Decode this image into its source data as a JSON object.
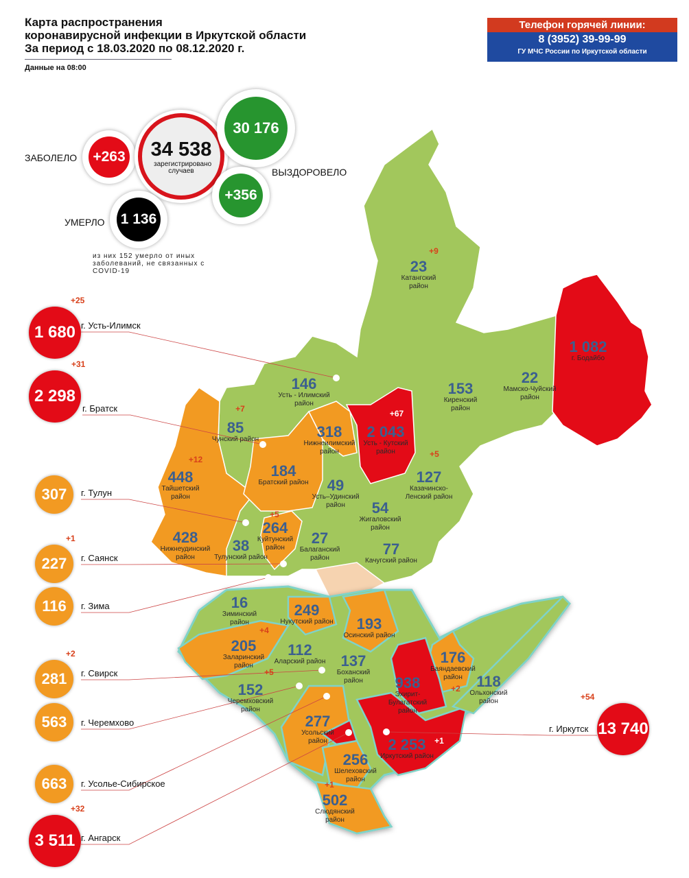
{
  "header": {
    "title_lines": [
      "Карта распространения",
      "коронавирусной инфекции в Иркутской области",
      "За период с 18.03.2020 по 08.12.2020 г."
    ],
    "as_of": "Данные на 08:00"
  },
  "hotline": {
    "title": "Телефон горячей линии:",
    "phone": "8 (3952) 39-99-99",
    "org": "ГУ МЧС России по Иркутской области"
  },
  "stats": {
    "total": "34 538",
    "total_caption": "зарегистрировано случаев",
    "new_cases": "+263",
    "new_label": "ЗАБОЛЕЛО",
    "recovered": "30 176",
    "recovered_new": "+356",
    "recovered_label": "ВЫЗДОРОВЕЛО",
    "deaths": "1 136",
    "deaths_label": "УМЕРЛО",
    "deaths_note": "из них 152 умерло от иных заболеваний, не связанных с COVID-19"
  },
  "colors": {
    "low": "#a2c75c",
    "medium": "#f29a22",
    "high": "#e30b17",
    "number": "#3b5f8f",
    "delta": "#d8401a"
  },
  "districts": [
    {
      "name": "Катангский район",
      "value": "23",
      "delta": "+9",
      "level": "low"
    },
    {
      "name": "Усть - Илимский район",
      "value": "146",
      "delta": "",
      "level": "low"
    },
    {
      "name": "Киренский район",
      "value": "153",
      "delta": "",
      "level": "low"
    },
    {
      "name": "Мамско-Чуйский район",
      "value": "22",
      "delta": "",
      "level": "low"
    },
    {
      "name": "г. Бодайбо",
      "value": "1 082",
      "delta": "",
      "level": "high"
    },
    {
      "name": "Чунский район",
      "value": "85",
      "delta": "+7",
      "level": "low"
    },
    {
      "name": "Нижнеилимский район",
      "value": "318",
      "delta": "",
      "level": "medium"
    },
    {
      "name": "Усть - Кутский район",
      "value": "2 043",
      "delta": "+67",
      "level": "high"
    },
    {
      "name": "Тайшетский район",
      "value": "448",
      "delta": "+12",
      "level": "medium"
    },
    {
      "name": "Братский район",
      "value": "184",
      "delta": "",
      "level": "medium"
    },
    {
      "name": "Усть–Удинский район",
      "value": "49",
      "delta": "",
      "level": "low"
    },
    {
      "name": "Казачинско-Ленский район",
      "value": "127",
      "delta": "+5",
      "level": "low"
    },
    {
      "name": "Жигаловский район",
      "value": "54",
      "delta": "",
      "level": "low"
    },
    {
      "name": "Нижнеудинский район",
      "value": "428",
      "delta": "",
      "level": "medium"
    },
    {
      "name": "Тулунский район",
      "value": "38",
      "delta": "",
      "level": "low"
    },
    {
      "name": "Куйтунский район",
      "value": "264",
      "delta": "+5",
      "level": "medium"
    },
    {
      "name": "Балаганский район",
      "value": "27",
      "delta": "",
      "level": "low"
    },
    {
      "name": "Качугский район",
      "value": "77",
      "delta": "",
      "level": "low"
    },
    {
      "name": "Зиминский район",
      "value": "16",
      "delta": "",
      "level": "low"
    },
    {
      "name": "Нукутский район",
      "value": "249",
      "delta": "",
      "level": "medium"
    },
    {
      "name": "Осинский район",
      "value": "193",
      "delta": "",
      "level": "medium"
    },
    {
      "name": "Заларинский район",
      "value": "205",
      "delta": "+4",
      "level": "medium"
    },
    {
      "name": "Аларский район",
      "value": "112",
      "delta": "",
      "level": "low"
    },
    {
      "name": "Боханский район",
      "value": "137",
      "delta": "",
      "level": "low"
    },
    {
      "name": "Баяндаевский район",
      "value": "176",
      "delta": "+2",
      "level": "medium"
    },
    {
      "name": "Ольхонский район",
      "value": "118",
      "delta": "",
      "level": "low"
    },
    {
      "name": "Эхирит-Булагатский район",
      "value": "938",
      "delta": "",
      "level": "high"
    },
    {
      "name": "Черемховский район",
      "value": "152",
      "delta": "+5",
      "level": "low"
    },
    {
      "name": "Усольский район",
      "value": "277",
      "delta": "",
      "level": "medium"
    },
    {
      "name": "Иркутский район",
      "value": "2 253",
      "delta": "+1",
      "level": "high"
    },
    {
      "name": "Шелеховский район",
      "value": "256",
      "delta": "",
      "level": "medium"
    },
    {
      "name": "Слюдянский район",
      "value": "502",
      "delta": "+1",
      "level": "medium"
    }
  ],
  "cities": [
    {
      "name": "г. Усть-Илимск",
      "value": "1 680",
      "delta": "+25",
      "level": "high"
    },
    {
      "name": "г. Братск",
      "value": "2 298",
      "delta": "+31",
      "level": "high"
    },
    {
      "name": "г. Тулун",
      "value": "307",
      "delta": "",
      "level": "medium"
    },
    {
      "name": "г. Саянск",
      "value": "227",
      "delta": "+1",
      "level": "medium"
    },
    {
      "name": "г. Зима",
      "value": "116",
      "delta": "",
      "level": "medium"
    },
    {
      "name": "г. Свирск",
      "value": "281",
      "delta": "+2",
      "level": "medium"
    },
    {
      "name": "г. Черемхово",
      "value": "563",
      "delta": "",
      "level": "medium"
    },
    {
      "name": "г. Усолье-Сибирское",
      "value": "663",
      "delta": "",
      "level": "medium"
    },
    {
      "name": "г. Ангарск",
      "value": "3 511",
      "delta": "+32",
      "level": "high"
    },
    {
      "name": "г. Иркутск",
      "value": "13 740",
      "delta": "+54",
      "level": "high"
    }
  ]
}
